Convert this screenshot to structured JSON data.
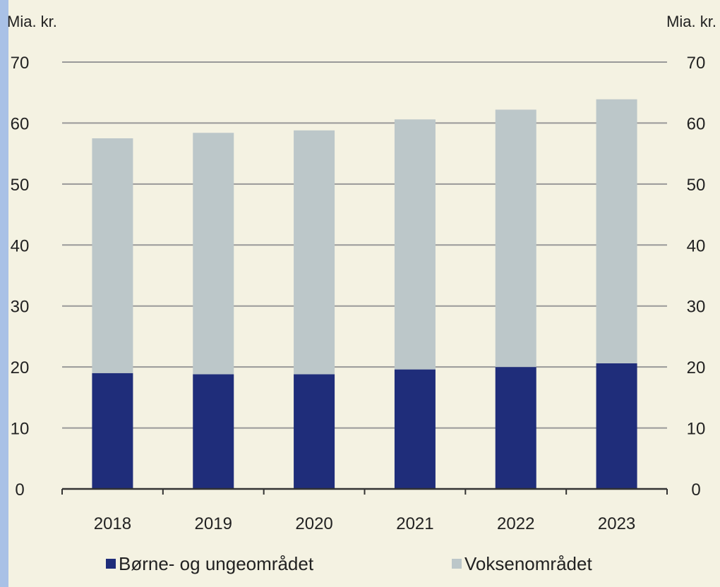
{
  "chart_data": {
    "type": "bar",
    "stacked": true,
    "categories": [
      "2018",
      "2019",
      "2020",
      "2021",
      "2022",
      "2023"
    ],
    "series": [
      {
        "name": "Børne- og ungeområdet",
        "color": "#1f2d7a",
        "values": [
          19.0,
          18.8,
          18.8,
          19.6,
          20.0,
          20.6
        ]
      },
      {
        "name": "Voksenområdet",
        "color": "#bcc7c9",
        "values": [
          38.5,
          39.6,
          40.0,
          41.0,
          42.2,
          43.3
        ]
      }
    ],
    "ylim": [
      0,
      70
    ],
    "yticks": [
      0,
      10,
      20,
      30,
      40,
      50,
      60,
      70
    ],
    "ylabel_left": "Mia. kr.",
    "ylabel_right": "Mia. kr.",
    "grid": true,
    "legend_position": "bottom",
    "colors": {
      "background": "#f4f2e2",
      "grid": "#999999",
      "axis": "#333333",
      "left_edge": "#a9c1e6"
    }
  }
}
